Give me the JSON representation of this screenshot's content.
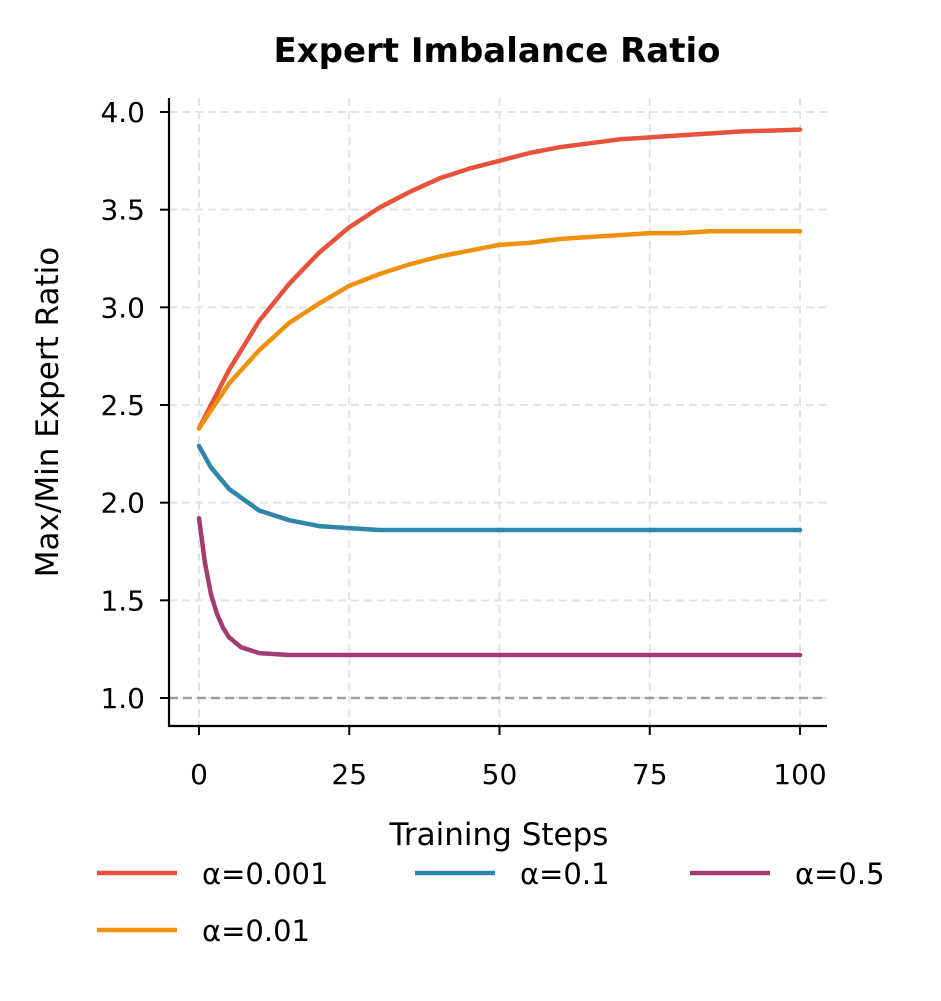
{
  "chart_data": {
    "type": "line",
    "title": "Expert Imbalance Ratio",
    "xlabel": "Training Steps",
    "ylabel": "Max/Min Expert Ratio",
    "xlim": [
      -5,
      105
    ],
    "ylim": [
      0.86,
      4.06
    ],
    "xticks": [
      0,
      25,
      50,
      75,
      100
    ],
    "xtick_labels": [
      "0",
      "25",
      "50",
      "75",
      "100"
    ],
    "yticks": [
      1.0,
      1.5,
      2.0,
      2.5,
      3.0,
      3.5,
      4.0
    ],
    "ytick_labels": [
      "1.0",
      "1.5",
      "2.0",
      "2.5",
      "3.0",
      "3.5",
      "4.0"
    ],
    "grid": true,
    "reference_line": {
      "y": 1.0,
      "color": "#a0a0a0",
      "style": "dashed"
    },
    "legend_placement": "bottom",
    "series": [
      {
        "name": "α=0.001",
        "color": "#e8513a",
        "x": [
          0,
          5,
          10,
          15,
          20,
          25,
          30,
          35,
          40,
          45,
          50,
          55,
          60,
          65,
          70,
          75,
          80,
          85,
          90,
          95,
          100
        ],
        "y": [
          2.38,
          2.68,
          2.93,
          3.12,
          3.28,
          3.41,
          3.51,
          3.59,
          3.66,
          3.71,
          3.75,
          3.79,
          3.82,
          3.84,
          3.86,
          3.87,
          3.88,
          3.89,
          3.9,
          3.905,
          3.91
        ]
      },
      {
        "name": "α=0.01",
        "color": "#f0900c",
        "x": [
          0,
          5,
          10,
          15,
          20,
          25,
          30,
          35,
          40,
          45,
          50,
          55,
          60,
          65,
          70,
          75,
          80,
          85,
          90,
          95,
          100
        ],
        "y": [
          2.38,
          2.61,
          2.78,
          2.92,
          3.02,
          3.11,
          3.17,
          3.22,
          3.26,
          3.29,
          3.32,
          3.33,
          3.35,
          3.36,
          3.37,
          3.38,
          3.38,
          3.39,
          3.39,
          3.39,
          3.39
        ]
      },
      {
        "name": "α=0.1",
        "color": "#2e86ab",
        "x": [
          0,
          2,
          5,
          10,
          15,
          20,
          25,
          30,
          40,
          50,
          60,
          70,
          80,
          90,
          100
        ],
        "y": [
          2.29,
          2.18,
          2.07,
          1.96,
          1.91,
          1.88,
          1.87,
          1.86,
          1.86,
          1.86,
          1.86,
          1.86,
          1.86,
          1.86,
          1.86
        ]
      },
      {
        "name": "α=0.5",
        "color": "#a23b72",
        "x": [
          0,
          1,
          2,
          3,
          4,
          5,
          7,
          10,
          15,
          25,
          50,
          75,
          100
        ],
        "y": [
          1.92,
          1.69,
          1.53,
          1.43,
          1.36,
          1.31,
          1.26,
          1.23,
          1.22,
          1.22,
          1.22,
          1.22,
          1.22
        ]
      }
    ]
  }
}
